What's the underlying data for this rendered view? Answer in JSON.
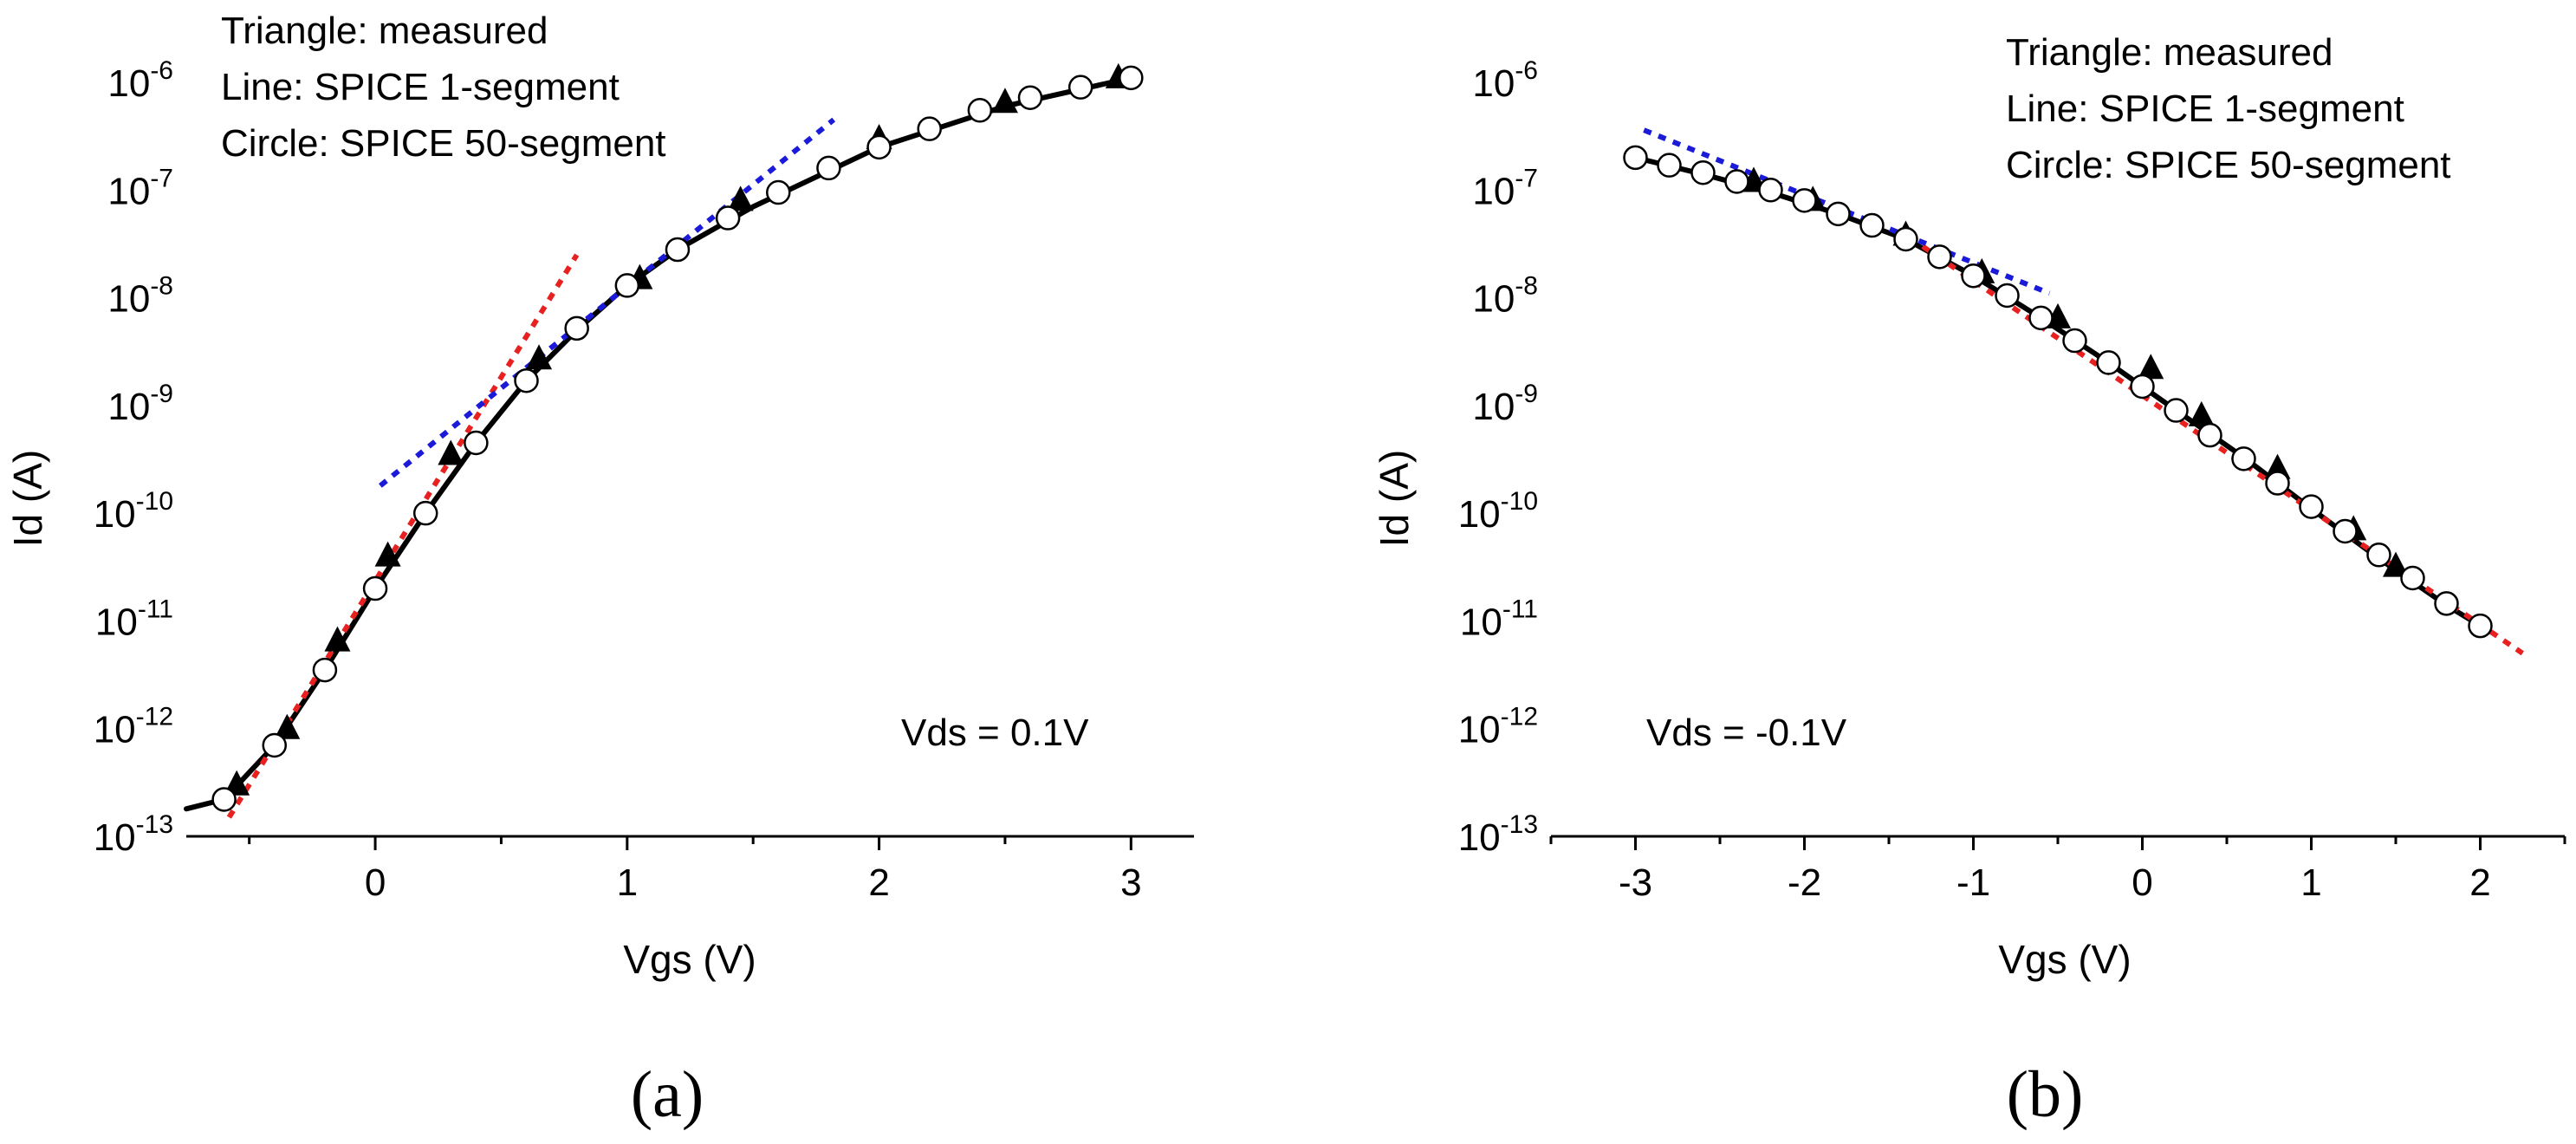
{
  "chart_data": [
    {
      "type": "scatter",
      "panel_label": "(a)",
      "xlabel": "Vgs (V)",
      "ylabel": "Id (A)",
      "x_ticks": [
        "0",
        "1",
        "2",
        "3"
      ],
      "xlim": [
        -0.75,
        3.25
      ],
      "y_scale": "log",
      "ylim": [
        1e-13,
        1e-06
      ],
      "y_ticks": [
        {
          "base": "10",
          "exp": "-13",
          "value": 1e-13
        },
        {
          "base": "10",
          "exp": "-12",
          "value": 1e-12
        },
        {
          "base": "10",
          "exp": "-11",
          "value": 1e-11
        },
        {
          "base": "10",
          "exp": "-10",
          "value": 1e-10
        },
        {
          "base": "10",
          "exp": "-9",
          "value": 1e-09
        },
        {
          "base": "10",
          "exp": "-8",
          "value": 1e-08
        },
        {
          "base": "10",
          "exp": "-7",
          "value": 1e-07
        },
        {
          "base": "10",
          "exp": "-6",
          "value": 1e-06
        }
      ],
      "legend": [
        "Triangle: measured",
        "Line: SPICE 1-segment",
        "Circle: SPICE 50-segment"
      ],
      "annotation": "Vds = 0.1V",
      "series": [
        {
          "name": "SPICE 1-segment",
          "style": "solid",
          "color": "#000000",
          "x": [
            -0.75,
            -0.6,
            -0.4,
            -0.2,
            0,
            0.2,
            0.4,
            0.6,
            0.8,
            1.0,
            1.2,
            1.5,
            2.0,
            2.5,
            3.0
          ],
          "y": [
            1.8e-13,
            2.2e-13,
            7e-13,
            3.5e-12,
            2e-11,
            1e-10,
            4.5e-10,
            1.7e-09,
            5e-09,
            1.3e-08,
            2.8e-08,
            7e-08,
            2.5e-07,
            6e-07,
            1.1e-06
          ]
        },
        {
          "name": "SPICE 50-segment",
          "style": "circle",
          "x": [
            -0.6,
            -0.4,
            -0.2,
            0,
            0.2,
            0.4,
            0.6,
            0.8,
            1.0,
            1.2,
            1.4,
            1.6,
            1.8,
            2.0,
            2.2,
            2.4,
            2.6,
            2.8,
            3.0
          ],
          "y": [
            2.2e-13,
            7e-13,
            3.5e-12,
            2e-11,
            1e-10,
            4.5e-10,
            1.7e-09,
            5.2e-09,
            1.3e-08,
            2.8e-08,
            5.5e-08,
            9.5e-08,
            1.6e-07,
            2.5e-07,
            3.7e-07,
            5.5e-07,
            7.2e-07,
            9e-07,
            1.1e-06
          ]
        },
        {
          "name": "measured",
          "style": "triangle",
          "x": [
            -0.55,
            -0.35,
            -0.15,
            0.05,
            0.3,
            0.65,
            1.05,
            1.45,
            2.0,
            2.5,
            2.95
          ],
          "y": [
            3e-13,
            1e-12,
            6.5e-12,
            4e-11,
            3.5e-10,
            2.7e-09,
            1.5e-08,
            8e-08,
            3e-07,
            6.5e-07,
            1.1e-06
          ]
        },
        {
          "name": "red fit",
          "style": "dotted",
          "color": "#e8201f",
          "x": [
            -0.58,
            0.8
          ],
          "y": [
            1.5e-13,
            2.5e-08
          ]
        },
        {
          "name": "blue fit",
          "style": "dotted",
          "color": "#1a1ad8",
          "x": [
            0.02,
            1.82
          ],
          "y": [
            1.8e-10,
            4.5e-07
          ]
        }
      ]
    },
    {
      "type": "scatter",
      "panel_label": "(b)",
      "xlabel": "Vgs (V)",
      "ylabel": "Id (A)",
      "x_ticks": [
        "-3",
        "-2",
        "-1",
        "0",
        "1",
        "2"
      ],
      "xlim": [
        -3.5,
        2.5
      ],
      "y_scale": "log",
      "ylim": [
        1e-13,
        1e-06
      ],
      "y_ticks": [
        {
          "base": "10",
          "exp": "-13",
          "value": 1e-13
        },
        {
          "base": "10",
          "exp": "-12",
          "value": 1e-12
        },
        {
          "base": "10",
          "exp": "-11",
          "value": 1e-11
        },
        {
          "base": "10",
          "exp": "-10",
          "value": 1e-10
        },
        {
          "base": "10",
          "exp": "-9",
          "value": 1e-09
        },
        {
          "base": "10",
          "exp": "-8",
          "value": 1e-08
        },
        {
          "base": "10",
          "exp": "-7",
          "value": 1e-07
        },
        {
          "base": "10",
          "exp": "-6",
          "value": 1e-06
        }
      ],
      "legend": [
        "Triangle: measured",
        "Line: SPICE 1-segment",
        "Circle: SPICE 50-segment"
      ],
      "annotation": "Vds = -0.1V",
      "series": [
        {
          "name": "SPICE 1-segment",
          "style": "solid",
          "color": "#000000",
          "x": [
            -3,
            -2.6,
            -2.2,
            -1.8,
            -1.4,
            -1.0,
            -0.6,
            -0.2,
            0.2,
            0.6,
            1.0,
            1.4,
            1.8,
            2.0
          ],
          "y": [
            2e-07,
            1.4e-07,
            9.5e-08,
            6e-08,
            3.5e-08,
            1.6e-08,
            6.5e-09,
            2.5e-09,
            9e-10,
            3.3e-10,
            1.1e-10,
            3.8e-11,
            1.4e-11,
            9e-12
          ]
        },
        {
          "name": "SPICE 50-segment",
          "style": "circle",
          "x": [
            -3,
            -2.8,
            -2.6,
            -2.4,
            -2.2,
            -2.0,
            -1.8,
            -1.6,
            -1.4,
            -1.2,
            -1.0,
            -0.8,
            -0.6,
            -0.4,
            -0.2,
            0,
            0.2,
            0.4,
            0.6,
            0.8,
            1.0,
            1.2,
            1.4,
            1.6,
            1.8,
            2.0
          ],
          "y": [
            2e-07,
            1.7e-07,
            1.45e-07,
            1.2e-07,
            1e-07,
            8e-08,
            6e-08,
            4.7e-08,
            3.5e-08,
            2.4e-08,
            1.6e-08,
            1.05e-08,
            6.5e-09,
            4e-09,
            2.5e-09,
            1.5e-09,
            9e-10,
            5.3e-10,
            3.2e-10,
            1.9e-10,
            1.15e-10,
            6.8e-11,
            4.1e-11,
            2.5e-11,
            1.45e-11,
            9e-12
          ]
        },
        {
          "name": "measured",
          "style": "triangle",
          "x": [
            -2.3,
            -1.95,
            -1.4,
            -0.95,
            -0.5,
            0.05,
            0.35,
            0.8,
            1.25,
            1.5
          ],
          "y": [
            1.2e-07,
            8e-08,
            3.8e-08,
            1.7e-08,
            6.5e-09,
            2.2e-09,
            8e-10,
            2.6e-10,
            7e-11,
            3.2e-11
          ]
        },
        {
          "name": "red fit",
          "style": "dotted",
          "color": "#e8201f",
          "x": [
            -1.3,
            2.25
          ],
          "y": [
            3e-08,
            5e-12
          ]
        },
        {
          "name": "blue fit",
          "style": "dotted",
          "color": "#1a1ad8",
          "x": [
            -2.95,
            -0.55
          ],
          "y": [
            3.6e-07,
            1.1e-08
          ]
        }
      ]
    }
  ]
}
